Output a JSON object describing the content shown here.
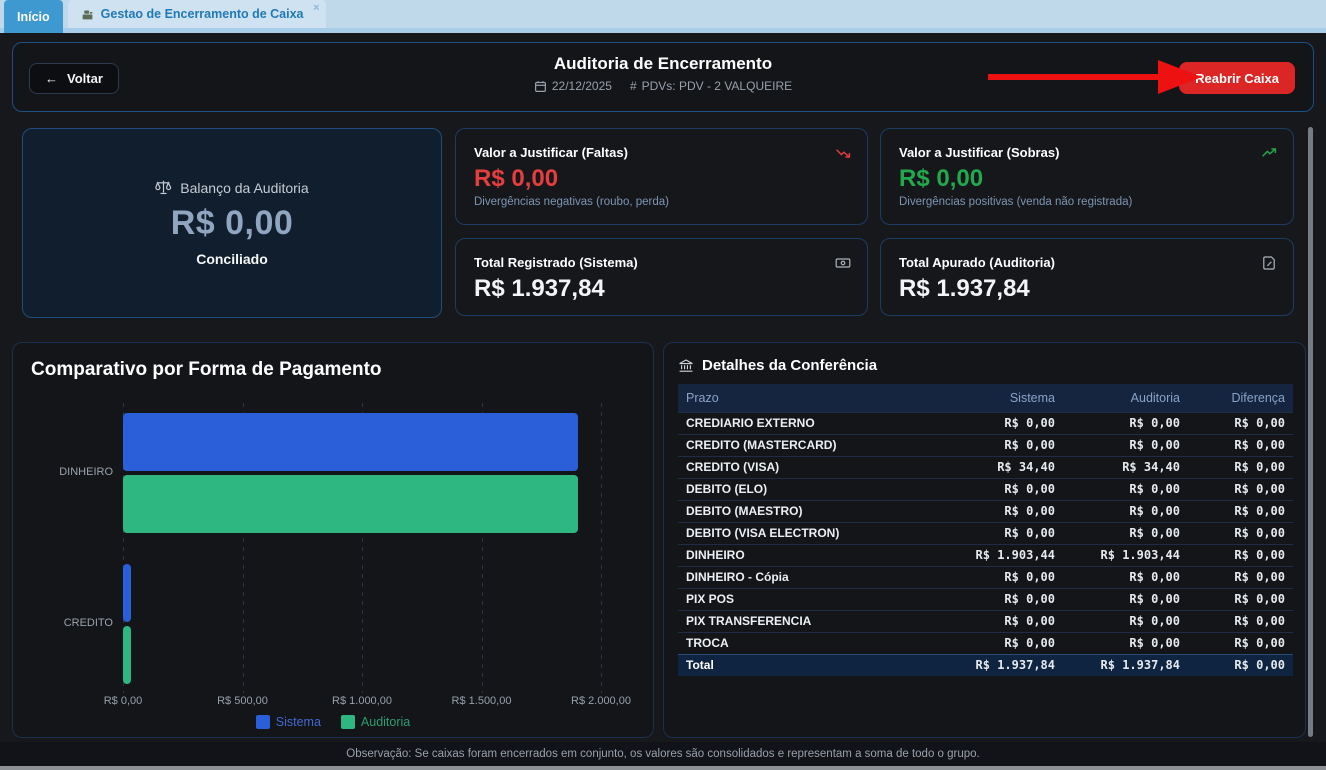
{
  "tabs": [
    {
      "label": "Início",
      "active": true
    },
    {
      "label": "Gestao de Encerramento de Caixa",
      "active": false,
      "close": "×"
    }
  ],
  "header": {
    "back_label": "Voltar",
    "back_arrow": "←",
    "title": "Auditoria de Encerramento",
    "date": "22/12/2025",
    "pdvs": "PDVs: PDV - 2 VALQUEIRE",
    "hash": "#",
    "reopen_label": "Reabrir Caixa"
  },
  "summary": {
    "balance": {
      "label": "Balanço da Auditoria",
      "value": "R$ 0,00",
      "status": "Conciliado"
    },
    "faltas": {
      "title": "Valor a Justificar (Faltas)",
      "value": "R$ 0,00",
      "subtitle": "Divergências negativas (roubo, perda)"
    },
    "sobras": {
      "title": "Valor a Justificar (Sobras)",
      "value": "R$ 0,00",
      "subtitle": "Divergências positivas (venda não registrada)"
    },
    "registrado": {
      "title": "Total Registrado (Sistema)",
      "value": "R$ 1.937,84"
    },
    "apurado": {
      "title": "Total Apurado (Auditoria)",
      "value": "R$ 1.937,84"
    }
  },
  "chart_data": {
    "type": "bar",
    "orientation": "horizontal",
    "title": "Comparativo por Forma de Pagamento",
    "categories": [
      "DINHEIRO",
      "CREDITO"
    ],
    "series": [
      {
        "name": "Sistema",
        "color": "#2a5fd9",
        "label_color": "#4169cf",
        "values": [
          1903.44,
          34.4
        ]
      },
      {
        "name": "Auditoria",
        "color": "#2fb782",
        "label_color": "#2f9e6e",
        "values": [
          1903.44,
          34.4
        ]
      }
    ],
    "xlim": [
      0,
      2000
    ],
    "x_ticks": [
      "R$ 0,00",
      "R$ 500,00",
      "R$ 1.000,00",
      "R$ 1.500,00",
      "R$ 2.000,00"
    ],
    "grid": "dashed-vertical",
    "legend_position": "bottom"
  },
  "table": {
    "title": "Detalhes da Conferência",
    "columns": [
      "Prazo",
      "Sistema",
      "Auditoria",
      "Diferença"
    ],
    "rows": [
      {
        "label": "CREDIARIO EXTERNO",
        "sistema": "R$ 0,00",
        "auditoria": "R$ 0,00",
        "diferenca": "R$ 0,00"
      },
      {
        "label": "CREDITO (MASTERCARD)",
        "sistema": "R$ 0,00",
        "auditoria": "R$ 0,00",
        "diferenca": "R$ 0,00"
      },
      {
        "label": "CREDITO (VISA)",
        "sistema": "R$ 34,40",
        "auditoria": "R$ 34,40",
        "diferenca": "R$ 0,00"
      },
      {
        "label": "DEBITO (ELO)",
        "sistema": "R$ 0,00",
        "auditoria": "R$ 0,00",
        "diferenca": "R$ 0,00"
      },
      {
        "label": "DEBITO (MAESTRO)",
        "sistema": "R$ 0,00",
        "auditoria": "R$ 0,00",
        "diferenca": "R$ 0,00"
      },
      {
        "label": "DEBITO (VISA ELECTRON)",
        "sistema": "R$ 0,00",
        "auditoria": "R$ 0,00",
        "diferenca": "R$ 0,00"
      },
      {
        "label": "DINHEIRO",
        "sistema": "R$ 1.903,44",
        "auditoria": "R$ 1.903,44",
        "diferenca": "R$ 0,00"
      },
      {
        "label": "DINHEIRO - Cópia",
        "sistema": "R$ 0,00",
        "auditoria": "R$ 0,00",
        "diferenca": "R$ 0,00"
      },
      {
        "label": "PIX POS",
        "sistema": "R$ 0,00",
        "auditoria": "R$ 0,00",
        "diferenca": "R$ 0,00"
      },
      {
        "label": "PIX TRANSFERENCIA",
        "sistema": "R$ 0,00",
        "auditoria": "R$ 0,00",
        "diferenca": "R$ 0,00"
      },
      {
        "label": "TROCA",
        "sistema": "R$ 0,00",
        "auditoria": "R$ 0,00",
        "diferenca": "R$ 0,00"
      }
    ],
    "total": {
      "label": "Total",
      "sistema": "R$ 1.937,84",
      "auditoria": "R$ 1.937,84",
      "diferenca": "R$ 0,00"
    }
  },
  "footer": {
    "note": "Observação: Se caixas foram encerrados em conjunto, os valores são consolidados e representam a soma de todo o grupo."
  },
  "colors": {
    "accent_red": "#dc2626",
    "value_red": "#e53e3e",
    "value_green": "#21a94d",
    "annotation_arrow": "#ee1111",
    "tab_active": "#3e99d1",
    "card_border": "#1c3c64"
  }
}
